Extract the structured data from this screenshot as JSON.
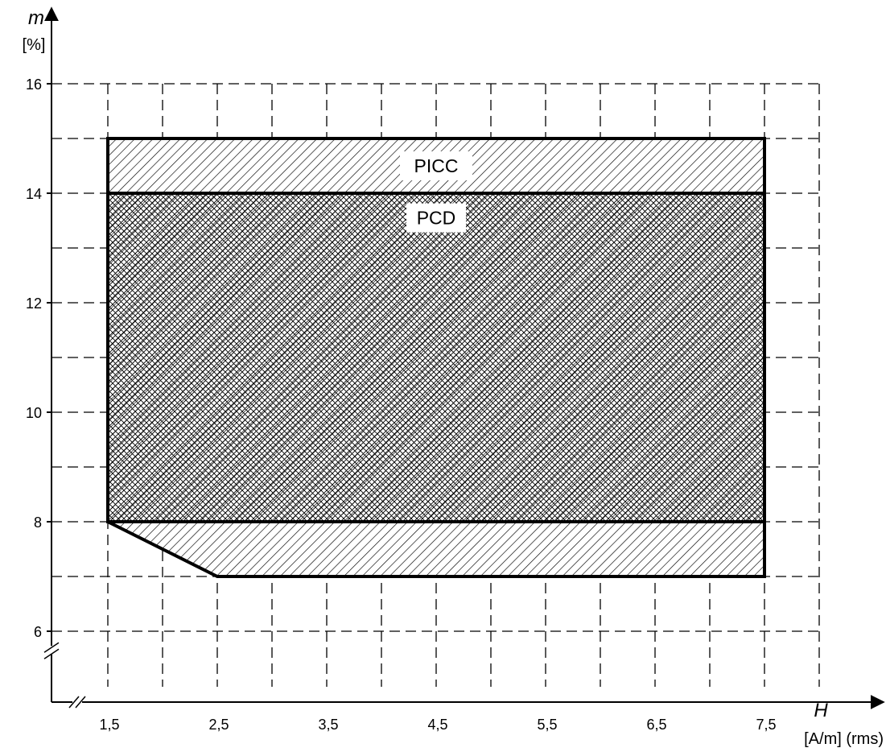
{
  "chart_data": {
    "type": "area",
    "title": "",
    "xaxis": {
      "symbol": "H",
      "unit": "[A/m] (rms)",
      "ticks": [
        1.5,
        2.5,
        3.5,
        4.5,
        5.5,
        6.5,
        7.5
      ],
      "tick_labels": [
        "1,5",
        "2,5",
        "3,5",
        "4,5",
        "5,5",
        "6,5",
        "7,5"
      ],
      "range": [
        1.0,
        8.5
      ],
      "grid_step": 0.5,
      "axis_break": true
    },
    "yaxis": {
      "symbol": "m",
      "unit": "[%]",
      "ticks": [
        6,
        8,
        10,
        12,
        14,
        16
      ],
      "tick_labels": [
        "6",
        "8",
        "10",
        "12",
        "14",
        "16"
      ],
      "range": [
        5.0,
        16.5
      ],
      "grid_step": 1,
      "axis_break": true
    },
    "grid": true,
    "regions": [
      {
        "name": "PICC",
        "pattern": "diagonal-hatch",
        "polygon": [
          [
            1.5,
            8
          ],
          [
            1.5,
            15
          ],
          [
            7.5,
            15
          ],
          [
            7.5,
            7
          ],
          [
            2.5,
            7
          ]
        ],
        "label_at": [
          4.5,
          14.5
        ]
      },
      {
        "name": "PCD",
        "pattern": "cross-hatch",
        "polygon": [
          [
            1.5,
            8
          ],
          [
            1.5,
            14
          ],
          [
            7.5,
            14
          ],
          [
            7.5,
            8
          ]
        ],
        "label_at": [
          4.5,
          13.55
        ]
      }
    ]
  }
}
